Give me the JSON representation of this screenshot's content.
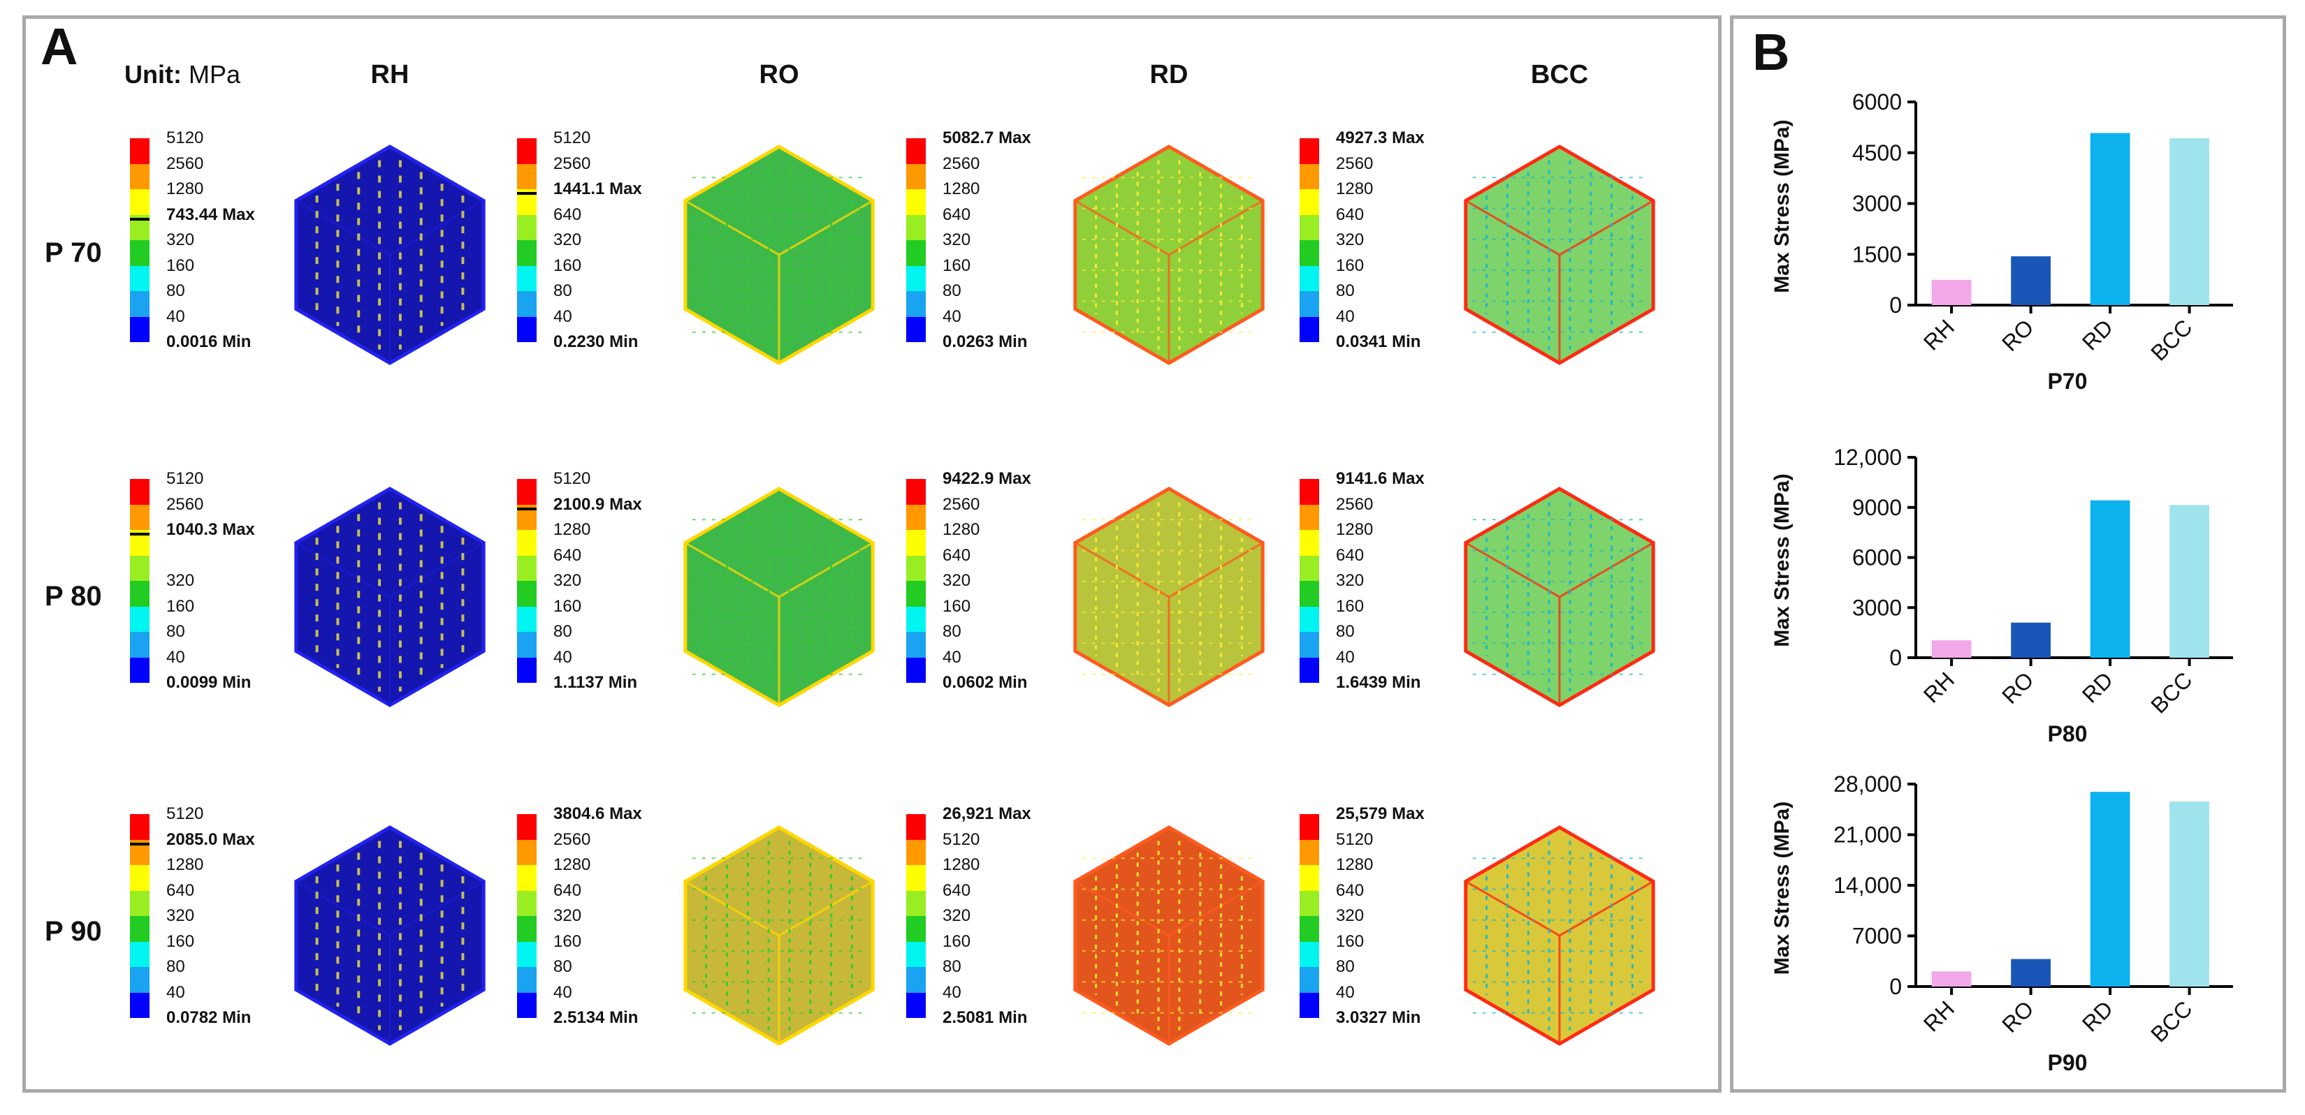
{
  "panelA": {
    "label": "A",
    "unit_key": "Unit:",
    "unit_value": "MPa",
    "columns": [
      "RH",
      "RO",
      "RD",
      "BCC"
    ],
    "rows": [
      "P 70",
      "P 80",
      "P 90"
    ],
    "legend_colors": [
      "#ff0000",
      "#ff9900",
      "#ffff00",
      "#99ee22",
      "#22cc22",
      "#00f5f0",
      "#1aa3f0",
      "#0000ff"
    ],
    "legends": [
      [
        {
          "levels": [
            "5120",
            "2560",
            "1280",
            "743.44 Max",
            "320",
            "160",
            "80",
            "40",
            "0.0016 Min"
          ],
          "marker": 3,
          "bold": [
            3,
            8
          ]
        },
        {
          "levels": [
            "5120",
            "2560",
            "1441.1 Max",
            "640",
            "320",
            "160",
            "80",
            "40",
            "0.2230 Min"
          ],
          "marker": 2,
          "bold": [
            2,
            8
          ]
        },
        {
          "levels": [
            "5082.7 Max",
            "2560",
            "1280",
            "640",
            "320",
            "160",
            "80",
            "40",
            "0.0263 Min"
          ],
          "marker": -1,
          "bold": [
            0,
            8
          ]
        },
        {
          "levels": [
            "4927.3 Max",
            "2560",
            "1280",
            "640",
            "320",
            "160",
            "80",
            "40",
            "0.0341 Min"
          ],
          "marker": -1,
          "bold": [
            0,
            8
          ]
        }
      ],
      [
        {
          "levels": [
            "5120",
            "2560",
            "1040.3 Max",
            "",
            "320",
            "160",
            "80",
            "40",
            "0.0099 Min"
          ],
          "marker": 2,
          "bold": [
            2,
            8
          ]
        },
        {
          "levels": [
            "5120",
            "2100.9 Max",
            "1280",
            "640",
            "320",
            "160",
            "80",
            "40",
            "1.1137 Min"
          ],
          "marker": 1,
          "bold": [
            1,
            8
          ]
        },
        {
          "levels": [
            "9422.9 Max",
            "2560",
            "1280",
            "640",
            "320",
            "160",
            "80",
            "40",
            "0.0602 Min"
          ],
          "marker": -1,
          "bold": [
            0,
            8
          ]
        },
        {
          "levels": [
            "9141.6 Max",
            "2560",
            "1280",
            "640",
            "320",
            "160",
            "80",
            "40",
            "1.6439 Min"
          ],
          "marker": -1,
          "bold": [
            0,
            8
          ]
        }
      ],
      [
        {
          "levels": [
            "5120",
            "2085.0 Max",
            "1280",
            "640",
            "320",
            "160",
            "80",
            "40",
            "0.0782 Min"
          ],
          "marker": 1,
          "bold": [
            1,
            8
          ]
        },
        {
          "levels": [
            "3804.6 Max",
            "2560",
            "1280",
            "640",
            "320",
            "160",
            "80",
            "40",
            "2.5134 Min"
          ],
          "marker": -1,
          "bold": [
            0,
            8
          ]
        },
        {
          "levels": [
            "26,921 Max",
            "5120",
            "1280",
            "640",
            "320",
            "160",
            "80",
            "40",
            "2.5081 Min"
          ],
          "marker": -1,
          "bold": [
            0,
            8
          ]
        },
        {
          "levels": [
            "25,579 Max",
            "5120",
            "1280",
            "640",
            "320",
            "160",
            "80",
            "40",
            "3.0327 Min"
          ],
          "marker": -1,
          "bold": [
            0,
            8
          ]
        }
      ]
    ]
  },
  "panelB": {
    "label": "B"
  },
  "chart_data": [
    {
      "type": "bar",
      "title": "",
      "xlabel": "P70",
      "ylabel": "Max Stress (MPa)",
      "categories": [
        "RH",
        "RO",
        "RD",
        "BCC"
      ],
      "values": [
        743.44,
        1441.1,
        5082.7,
        4927.3
      ],
      "ylim": [
        0,
        6000
      ],
      "yticks": [
        "0",
        "1500",
        "3000",
        "4500",
        "6000"
      ],
      "colors": [
        "#f2a7e8",
        "#1a55b8",
        "#0bb2ee",
        "#9fe3ec"
      ],
      "grid": false,
      "legend": "none"
    },
    {
      "type": "bar",
      "title": "",
      "xlabel": "P80",
      "ylabel": "Max Stress (MPa)",
      "categories": [
        "RH",
        "RO",
        "RD",
        "BCC"
      ],
      "values": [
        1040.3,
        2100.9,
        9422.9,
        9141.6
      ],
      "ylim": [
        0,
        12000
      ],
      "yticks": [
        "0",
        "3000",
        "6000",
        "9000",
        "12,000"
      ],
      "colors": [
        "#f2a7e8",
        "#1a55b8",
        "#0bb2ee",
        "#9fe3ec"
      ],
      "grid": false,
      "legend": "none"
    },
    {
      "type": "bar",
      "title": "",
      "xlabel": "P90",
      "ylabel": "Max Stress (MPa)",
      "categories": [
        "RH",
        "RO",
        "RD",
        "BCC"
      ],
      "values": [
        2085.0,
        3804.6,
        26921,
        25579
      ],
      "ylim": [
        0,
        28000
      ],
      "yticks": [
        "0",
        "7000",
        "14,000",
        "21,000",
        "28,000"
      ],
      "colors": [
        "#f2a7e8",
        "#1a55b8",
        "#0bb2ee",
        "#9fe3ec"
      ],
      "grid": false,
      "legend": "none"
    }
  ]
}
